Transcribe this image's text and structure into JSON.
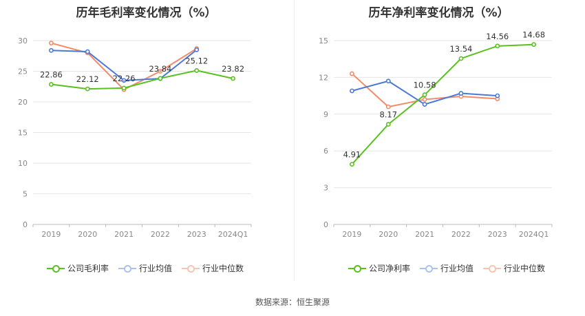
{
  "chart_data": [
    {
      "type": "line",
      "title": "历年毛利率变化情况（%）",
      "categories": [
        "2019",
        "2020",
        "2021",
        "2022",
        "2023",
        "2024Q1"
      ],
      "ylim": [
        0,
        30
      ],
      "yticks": [
        0,
        5,
        10,
        15,
        20,
        25,
        30
      ],
      "grid": true,
      "legend_position": "bottom",
      "series": [
        {
          "name": "公司毛利率",
          "color": "#58c01f",
          "values": [
            22.86,
            22.12,
            22.26,
            23.84,
            25.12,
            23.82
          ],
          "labels": [
            "22.86",
            "22.12",
            "22.26",
            "23.84",
            "25.12",
            "23.82"
          ]
        },
        {
          "name": "行业均值",
          "color": "#4a78d9",
          "values": [
            28.4,
            28.2,
            23.5,
            23.8,
            28.5,
            null
          ]
        },
        {
          "name": "行业中位数",
          "color": "#f48a67",
          "values": [
            29.6,
            28.0,
            22.0,
            25.0,
            28.7,
            null
          ]
        }
      ]
    },
    {
      "type": "line",
      "title": "历年净利率变化情况（%）",
      "categories": [
        "2019",
        "2020",
        "2021",
        "2022",
        "2023",
        "2024Q1"
      ],
      "ylim": [
        0,
        15
      ],
      "yticks": [
        0,
        3,
        6,
        9,
        12,
        15
      ],
      "grid": true,
      "legend_position": "bottom",
      "series": [
        {
          "name": "公司净利率",
          "color": "#58c01f",
          "values": [
            4.91,
            8.17,
            10.58,
            13.54,
            14.56,
            14.68
          ],
          "labels": [
            "4.91",
            "8.17",
            "10.58",
            "13.54",
            "14.56",
            "14.68"
          ]
        },
        {
          "name": "行业均值",
          "color": "#4a78d9",
          "values": [
            10.9,
            11.7,
            9.8,
            10.7,
            10.5,
            null
          ]
        },
        {
          "name": "行业中位数",
          "color": "#f48a67",
          "values": [
            12.3,
            9.6,
            10.2,
            10.45,
            10.25,
            null
          ]
        }
      ]
    }
  ],
  "source": "数据来源：恒生聚源"
}
